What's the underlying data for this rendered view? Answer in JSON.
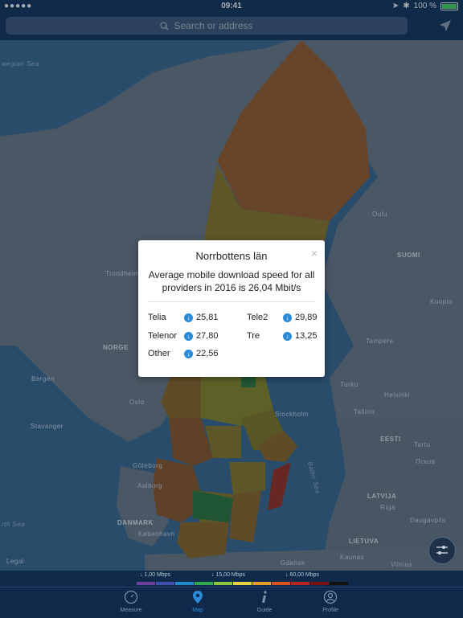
{
  "status_bar": {
    "signal": "●●●●●",
    "time": "09:41",
    "battery": "100 %"
  },
  "search": {
    "placeholder": "Search or address"
  },
  "map": {
    "labels": {
      "norwegian_sea": "wegian Sea",
      "north_sea": "rth Sea",
      "baltic_sea": "Baltic Sea",
      "norge": "NORGE",
      "suomi": "SUOMI",
      "eesti": "EESTI",
      "latvija": "LATVIJA",
      "lietuva": "LIETUVA",
      "danmark": "DANMARK",
      "oulu": "Oulu",
      "trondheim": "Trondheim",
      "kuopio": "Kuopio",
      "tampere": "Tampere",
      "bergen": "Bergen",
      "oslo": "Oslo",
      "stavanger": "Stavanger",
      "turku": "Turku",
      "helsinki": "Helsinki",
      "tallinn": "Tallinn",
      "stockholm": "Stockholm",
      "tartu": "Tartu",
      "pskov": "Псков",
      "goteborg": "Göteborg",
      "aalborg": "Aalborg",
      "riga": "Rīga",
      "daugavpils": "Daugavpils",
      "kobenhavn": "København",
      "gdansk": "Gdańsk",
      "kaunas": "Kaunas",
      "vilnius": "Vilnius",
      "legal": "Legal"
    }
  },
  "popup": {
    "title": "Norrbottens län",
    "description": "Average mobile download speed for all providers in 2016 is 26,04 Mbit/s",
    "close": "×",
    "providers": [
      {
        "name": "Telia",
        "value": "25,81"
      },
      {
        "name": "Tele2",
        "value": "29,89"
      },
      {
        "name": "Telenor",
        "value": "27,80"
      },
      {
        "name": "Tre",
        "value": "13,25"
      },
      {
        "name": "Other",
        "value": "22,56"
      }
    ]
  },
  "legend": {
    "low": "↓ 1,00 Mbps",
    "mid": "↓ 15,00 Mbps",
    "high": "↓ 60,00 Mbps",
    "colors": [
      "#6b3fa0",
      "#3f4fb0",
      "#1e88c8",
      "#2fa84f",
      "#8cc63e",
      "#e6d23c",
      "#e89b2a",
      "#d9531e",
      "#b8231e",
      "#7a1010",
      "#111111"
    ]
  },
  "tabs": [
    {
      "label": "Measure",
      "icon": "gauge-icon",
      "active": false
    },
    {
      "label": "Map",
      "icon": "map-pin-icon",
      "active": true
    },
    {
      "label": "Guide",
      "icon": "info-icon",
      "active": false
    },
    {
      "label": "Profile",
      "icon": "profile-icon",
      "active": false
    }
  ]
}
